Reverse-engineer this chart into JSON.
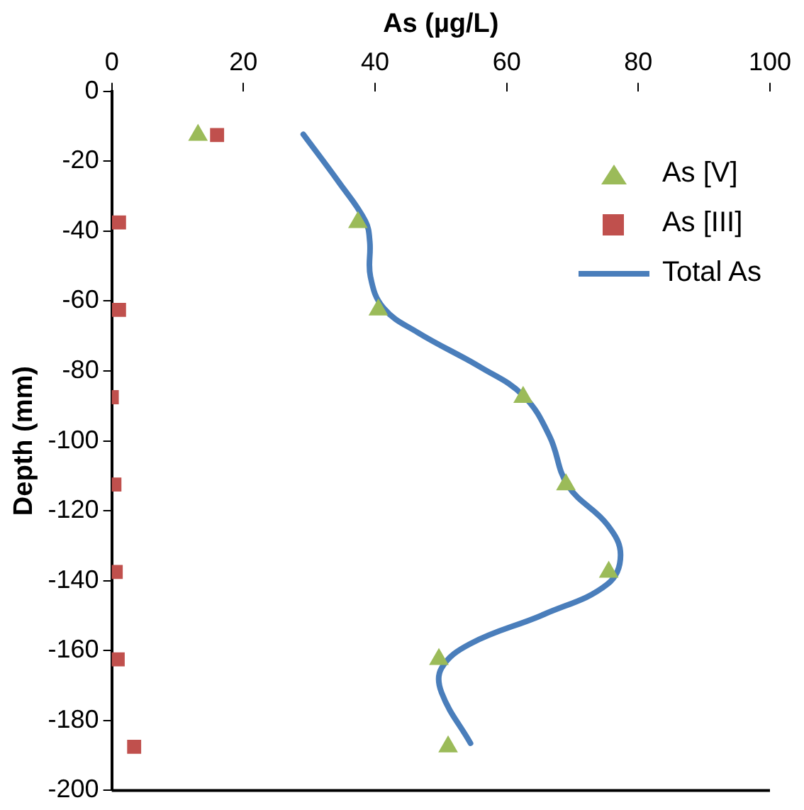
{
  "chart_data": {
    "type": "scatter",
    "xlabel": "As (µg/L)",
    "ylabel": "Depth (mm)",
    "xlim": [
      0,
      100
    ],
    "xticks": [
      0,
      20,
      40,
      60,
      80,
      100
    ],
    "ylim": [
      -200,
      0
    ],
    "yticks": [
      0,
      -20,
      -40,
      -60,
      -80,
      -100,
      -120,
      -140,
      -160,
      -180,
      -200
    ],
    "grid": false,
    "legend": "top right",
    "series": [
      {
        "name": "As [V]",
        "type": "scatter",
        "marker": "triangle",
        "color": "#9bbb59",
        "x": [
          13.1,
          37.4,
          40.5,
          62.5,
          69.0,
          75.5,
          49.7,
          51.1
        ],
        "values": [
          -12.5,
          -37.5,
          -62.5,
          -87.5,
          -112.5,
          -137.5,
          -162.5,
          -187.5
        ]
      },
      {
        "name": "As [III]",
        "type": "scatter",
        "marker": "square",
        "color": "#c0504d",
        "x": [
          16.0,
          1.1,
          1.1,
          0,
          0.4,
          0.6,
          0.9,
          3.4
        ],
        "values": [
          -12.5,
          -37.5,
          -62.5,
          -87.5,
          -112.5,
          -137.5,
          -162.5,
          -187.5
        ]
      },
      {
        "name": "Total As",
        "type": "line",
        "marker": "none",
        "color": "#4a7ebb",
        "x": [
          29.1,
          34.5,
          38.5,
          39.2,
          39.3,
          41.3,
          46.5,
          56.1,
          62.5,
          66.5,
          69.3,
          75.3,
          77.3,
          75.3,
          65.7,
          54.5,
          50.1,
          50.1,
          54.5
        ],
        "values": [
          -12.3,
          -26,
          -37,
          -43,
          -53,
          -62,
          -69,
          -79,
          -87,
          -98.6,
          -112.8,
          -124,
          -132.6,
          -141,
          -149.6,
          -158,
          -165,
          -172,
          -186.5
        ]
      }
    ]
  }
}
